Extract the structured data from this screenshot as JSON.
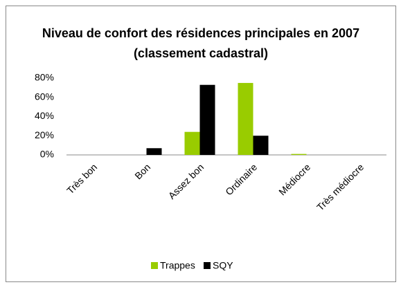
{
  "chart_data": {
    "type": "bar",
    "title": "Niveau de confort des résidences principales en 2007 (classement cadastral)",
    "categories": [
      "Très bon",
      "Bon",
      "Assez bon",
      "Ordinaire",
      "Médiocre",
      "Très médiocre"
    ],
    "series": [
      {
        "name": "Trappes",
        "color": "#99cc00",
        "values": [
          0,
          0,
          24,
          75,
          1,
          0
        ]
      },
      {
        "name": "SQY",
        "color": "#000000",
        "values": [
          0,
          7,
          73,
          20,
          0,
          0
        ]
      }
    ],
    "ylim": [
      0,
      80
    ],
    "yticks": [
      {
        "value": 0,
        "label": "0%"
      },
      {
        "value": 20,
        "label": "20%"
      },
      {
        "value": 40,
        "label": "40%"
      },
      {
        "value": 60,
        "label": "60%"
      },
      {
        "value": 80,
        "label": "80%"
      }
    ],
    "grid": false,
    "legend": "bottom"
  }
}
